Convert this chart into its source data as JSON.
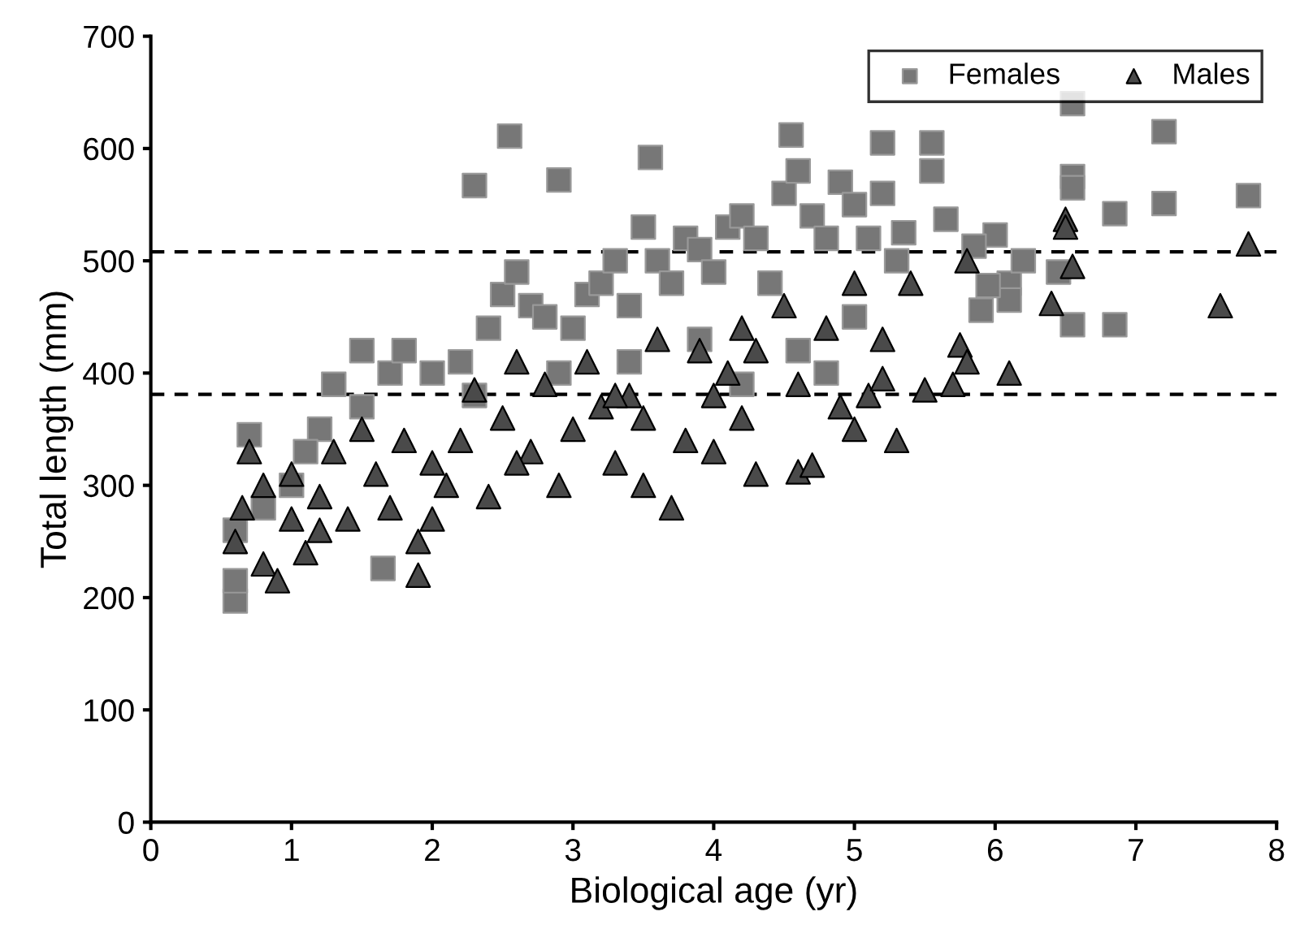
{
  "chart_data": {
    "type": "scatter",
    "xlabel": "Biological age (yr)",
    "ylabel": "Total length (mm)",
    "xlim": [
      0,
      8
    ],
    "ylim": [
      0,
      700
    ],
    "xticks": [
      0,
      1,
      2,
      3,
      4,
      5,
      6,
      7,
      8
    ],
    "yticks": [
      0,
      100,
      200,
      300,
      400,
      500,
      600,
      700
    ],
    "grid": false,
    "legend": "top right",
    "ref_lines": [
      {
        "axis": "y",
        "value": 508,
        "line_style": "dashed",
        "color": "#000000"
      },
      {
        "axis": "y",
        "value": 381,
        "line_style": "dashed",
        "color": "#000000"
      }
    ],
    "series": [
      {
        "name": "Females",
        "color": "#777777",
        "marker": "square",
        "x": [
          2.3,
          2.55,
          2.9,
          3.55,
          1.65,
          0.6,
          0.6,
          0.7,
          6.55,
          7.2,
          7.8,
          6.55,
          6.55,
          7.2,
          6.85,
          6.0,
          5.55,
          5.55,
          5.2,
          4.55,
          5.85,
          6.1,
          6.1,
          6.45,
          6.55,
          6.85,
          6.2,
          5.95,
          5.9,
          5.65,
          5.35,
          0.6,
          1.0,
          1.2,
          1.3,
          1.5,
          1.7,
          1.8,
          2.0,
          2.2,
          2.4,
          2.5,
          2.6,
          2.7,
          2.8,
          3.0,
          3.1,
          3.2,
          3.3,
          3.4,
          3.5,
          3.6,
          3.7,
          3.8,
          3.9,
          4.0,
          4.1,
          4.2,
          4.3,
          4.5,
          4.6,
          4.7,
          4.8,
          4.9,
          5.0,
          5.1,
          5.2,
          5.3,
          3.4,
          2.3,
          1.5,
          4.4,
          4.6,
          4.8,
          5.0,
          3.9,
          0.8,
          1.1,
          2.9,
          4.2
        ],
        "values": [
          567,
          611,
          572,
          592,
          226,
          197,
          215,
          345,
          640,
          615,
          558,
          575,
          565,
          551,
          542,
          523,
          580,
          605,
          605,
          612,
          513,
          480,
          465,
          490,
          443,
          443,
          500,
          478,
          456,
          537,
          525,
          260,
          300,
          350,
          390,
          420,
          400,
          420,
          400,
          410,
          440,
          470,
          490,
          460,
          450,
          440,
          470,
          480,
          500,
          460,
          530,
          500,
          480,
          520,
          510,
          490,
          530,
          540,
          520,
          560,
          580,
          540,
          520,
          570,
          550,
          520,
          560,
          500,
          410,
          380,
          370,
          480,
          420,
          400,
          450,
          430,
          280,
          330,
          400,
          390
        ]
      },
      {
        "name": "Males",
        "color": "#4a4a4a",
        "marker": "triangle",
        "x": [
          0.6,
          0.65,
          0.7,
          0.8,
          0.8,
          0.9,
          1.0,
          1.0,
          1.1,
          1.2,
          1.3,
          1.4,
          1.5,
          1.6,
          1.7,
          1.8,
          1.9,
          1.9,
          2.0,
          2.1,
          2.2,
          2.3,
          2.4,
          2.5,
          2.6,
          2.7,
          2.8,
          2.9,
          3.0,
          3.1,
          3.2,
          3.3,
          3.4,
          3.5,
          3.5,
          3.6,
          3.7,
          3.8,
          3.9,
          4.0,
          4.0,
          4.1,
          4.2,
          4.2,
          4.3,
          4.3,
          4.5,
          4.6,
          4.6,
          4.7,
          4.8,
          4.9,
          5.0,
          5.0,
          5.1,
          5.2,
          5.2,
          5.3,
          5.4,
          5.5,
          5.7,
          5.75,
          5.8,
          6.1,
          5.8,
          6.4,
          6.5,
          6.55,
          7.6,
          7.8,
          6.5,
          3.3,
          2.0,
          1.2,
          2.6
        ],
        "values": [
          250,
          280,
          330,
          300,
          230,
          215,
          270,
          310,
          240,
          290,
          330,
          270,
          350,
          310,
          280,
          340,
          220,
          250,
          320,
          300,
          340,
          385,
          290,
          360,
          410,
          330,
          390,
          300,
          350,
          410,
          370,
          320,
          380,
          360,
          300,
          430,
          280,
          340,
          420,
          380,
          330,
          400,
          360,
          440,
          420,
          310,
          460,
          390,
          312,
          318,
          440,
          370,
          350,
          480,
          380,
          430,
          395,
          340,
          480,
          385,
          390,
          425,
          500,
          400,
          410,
          462,
          537,
          495,
          460,
          515,
          530,
          380,
          270,
          260,
          320
        ]
      }
    ]
  }
}
